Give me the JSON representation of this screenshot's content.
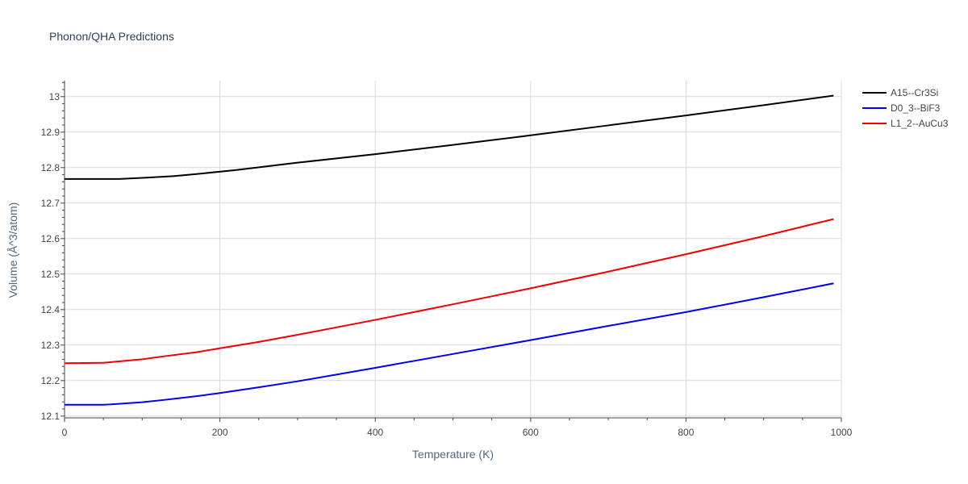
{
  "chart_data": {
    "type": "line",
    "title": "Phonon/QHA Predictions",
    "xlabel": "Temperature (K)",
    "ylabel": "Volume (Å^3/atom)",
    "xlim": [
      0,
      1000
    ],
    "ylim": [
      12.095,
      13.045
    ],
    "xticks": [
      0,
      200,
      400,
      600,
      800,
      1000
    ],
    "yticks": [
      12.1,
      12.2,
      12.3,
      12.4,
      12.5,
      12.6,
      12.7,
      12.8,
      12.9,
      13
    ],
    "grid": true,
    "legend_position": "top-right",
    "series": [
      {
        "name": "A15--Cr3Si",
        "color": "#000000",
        "x": [
          0,
          50,
          70,
          100,
          140,
          170,
          220,
          300,
          400,
          500,
          600,
          700,
          800,
          900,
          990
        ],
        "y": [
          12.768,
          12.768,
          12.768,
          12.771,
          12.776,
          12.782,
          12.793,
          12.814,
          12.838,
          12.864,
          12.891,
          12.919,
          12.947,
          12.976,
          13.003
        ]
      },
      {
        "name": "D0_3--BiF3",
        "color": "#0000ee",
        "x": [
          0,
          50,
          60,
          100,
          130,
          170,
          200,
          250,
          300,
          400,
          500,
          600,
          700,
          800,
          900,
          990
        ],
        "y": [
          12.132,
          12.132,
          12.133,
          12.139,
          12.146,
          12.156,
          12.165,
          12.181,
          12.198,
          12.236,
          12.275,
          12.314,
          12.354,
          12.393,
          12.435,
          12.474
        ]
      },
      {
        "name": "L1_2--AuCu3",
        "color": "#ee0000",
        "x": [
          0,
          50,
          60,
          100,
          130,
          170,
          200,
          250,
          300,
          400,
          500,
          600,
          700,
          800,
          900,
          990
        ],
        "y": [
          12.249,
          12.25,
          12.252,
          12.26,
          12.269,
          12.28,
          12.291,
          12.309,
          12.329,
          12.371,
          12.415,
          12.46,
          12.507,
          12.556,
          12.607,
          12.655
        ]
      }
    ]
  }
}
